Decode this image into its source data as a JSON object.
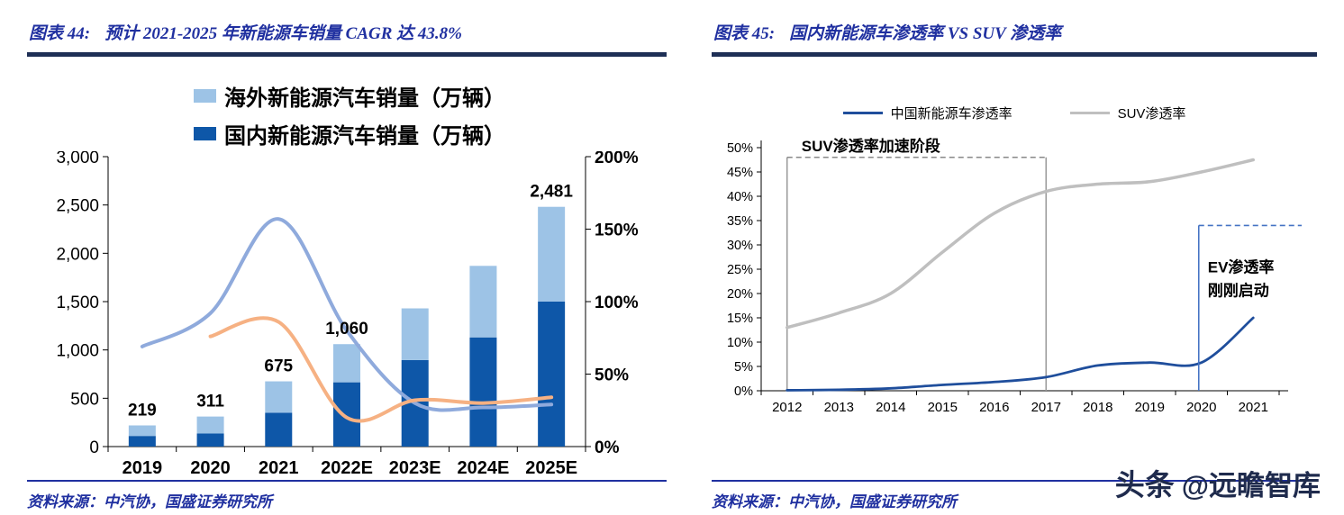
{
  "left_panel": {
    "title_prefix": "图表 44:",
    "title": "预计 2021-2025 年新能源车销量 CAGR 达 43.8%",
    "source": "资料来源：中汽协，国盛证券研究所"
  },
  "right_panel": {
    "title_prefix": "图表 45:",
    "title": "国内新能源车渗透率 VS SUV 渗透率",
    "source": "资料来源：中汽协，国盛证券研究所"
  },
  "watermark": {
    "brand": "头条",
    "handle": "@远瞻智库"
  },
  "chart_data": [
    {
      "type": "bar",
      "subtype": "stacked-bars-with-growth-lines",
      "title": "预计 2021-2025 年新能源车销量 CAGR 达 43.8%",
      "categories": [
        "2019",
        "2020",
        "2021",
        "2022E",
        "2023E",
        "2024E",
        "2025E"
      ],
      "series": [
        {
          "name": "国内新能源汽车销量（万辆）",
          "type": "bar",
          "stack": true,
          "color": "#0E57A8",
          "values": [
            110,
            135,
            350,
            665,
            895,
            1130,
            1500
          ]
        },
        {
          "name": "海外新能源汽车销量（万辆）",
          "type": "bar",
          "stack": true,
          "color": "#9DC3E6",
          "values": [
            109,
            176,
            325,
            395,
            535,
            740,
            981
          ]
        },
        {
          "name": "growth-line-blue",
          "type": "line",
          "axis": "right",
          "color": "#8FAADC",
          "values": [
            69,
            92,
            157,
            80,
            30,
            27,
            29
          ]
        },
        {
          "name": "growth-line-orange",
          "type": "line",
          "axis": "right",
          "color": "#F6B183",
          "values": [
            null,
            76,
            86,
            20,
            32,
            30,
            34
          ]
        }
      ],
      "total_labels": [
        "219",
        "311",
        "675",
        "1,060",
        "",
        "",
        "2,481"
      ],
      "left_axis": {
        "min": 0,
        "max": 3000,
        "step": 500,
        "labels": [
          "0",
          "500",
          "1,000",
          "1,500",
          "2,000",
          "2,500",
          "3,000"
        ]
      },
      "right_axis": {
        "min": 0,
        "max": 200,
        "step": 50,
        "labels": [
          "0%",
          "50%",
          "100%",
          "150%",
          "200%"
        ]
      },
      "legend": [
        {
          "label": "海外新能源汽车销量（万辆）",
          "color": "#9DC3E6"
        },
        {
          "label": "国内新能源汽车销量（万辆）",
          "color": "#0E57A8"
        }
      ]
    },
    {
      "type": "line",
      "title": "国内新能源车渗透率 VS SUV 渗透率",
      "x": [
        "2012",
        "2013",
        "2014",
        "2015",
        "2016",
        "2017",
        "2018",
        "2019",
        "2020",
        "2021"
      ],
      "series": [
        {
          "name": "中国新能源车渗透率",
          "color": "#1F4E9C",
          "values": [
            0.1,
            0.2,
            0.5,
            1.2,
            1.8,
            2.8,
            5.2,
            5.8,
            5.8,
            15
          ]
        },
        {
          "name": "SUV渗透率",
          "color": "#BFBFBF",
          "values": [
            13,
            16,
            20,
            28.5,
            36.5,
            41,
            42.5,
            43,
            45,
            47.5
          ]
        }
      ],
      "y_axis": {
        "min": 0,
        "max": 50,
        "step": 5,
        "labels": [
          "0%",
          "5%",
          "10%",
          "15%",
          "20%",
          "25%",
          "30%",
          "35%",
          "40%",
          "45%",
          "50%"
        ]
      },
      "legend": [
        {
          "label": "中国新能源车渗透率",
          "color": "#1F4E9C"
        },
        {
          "label": "SUV渗透率",
          "color": "#BFBFBF"
        }
      ],
      "annotations": {
        "suv_box": {
          "x_from": "2012",
          "x_to": "2017",
          "y_top": 48,
          "label": "SUV渗透率加速阶段"
        },
        "ev_marker": {
          "x": "2020",
          "y": 34,
          "color": "#4472C4",
          "label_lines": [
            "EV渗透率",
            "刚刚启动"
          ]
        }
      }
    }
  ]
}
